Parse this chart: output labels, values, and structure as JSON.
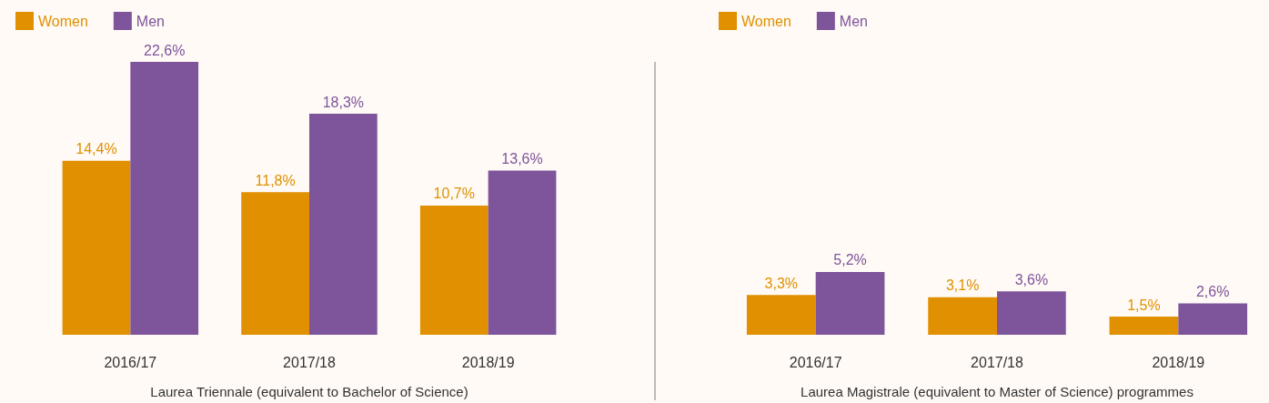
{
  "chart_data": [
    {
      "type": "bar",
      "xlabel": "Laurea Triennale (equivalent to Bachelor of Science)",
      "categories": [
        "2016/17",
        "2017/18",
        "2018/19"
      ],
      "series": [
        {
          "name": "Women",
          "color": "#e09000",
          "values": [
            14.4,
            11.8,
            10.7
          ],
          "value_labels": [
            "14,4%",
            "11,8%",
            "10,7%"
          ]
        },
        {
          "name": "Men",
          "color": "#7e549b",
          "values": [
            22.6,
            18.3,
            13.6
          ],
          "value_labels": [
            "22,6%",
            "18,3%",
            "13,6%"
          ]
        }
      ],
      "tick_labels": "x",
      "grid": false,
      "legend": "top left"
    },
    {
      "type": "bar",
      "xlabel": "Laurea Magistrale (equivalent to Master of Science) programmes",
      "categories": [
        "2016/17",
        "2017/18",
        "2018/19"
      ],
      "series": [
        {
          "name": "Women",
          "color": "#e09000",
          "values": [
            3.3,
            3.1,
            1.5
          ],
          "value_labels": [
            "3,3%",
            "3,1%",
            "1,5%"
          ]
        },
        {
          "name": "Men",
          "color": "#7e549b",
          "values": [
            5.2,
            3.6,
            2.6
          ],
          "value_labels": [
            "5,2%",
            "3,6%",
            "2,6%"
          ]
        }
      ],
      "tick_labels": "x",
      "grid": false,
      "legend": "top left"
    }
  ]
}
